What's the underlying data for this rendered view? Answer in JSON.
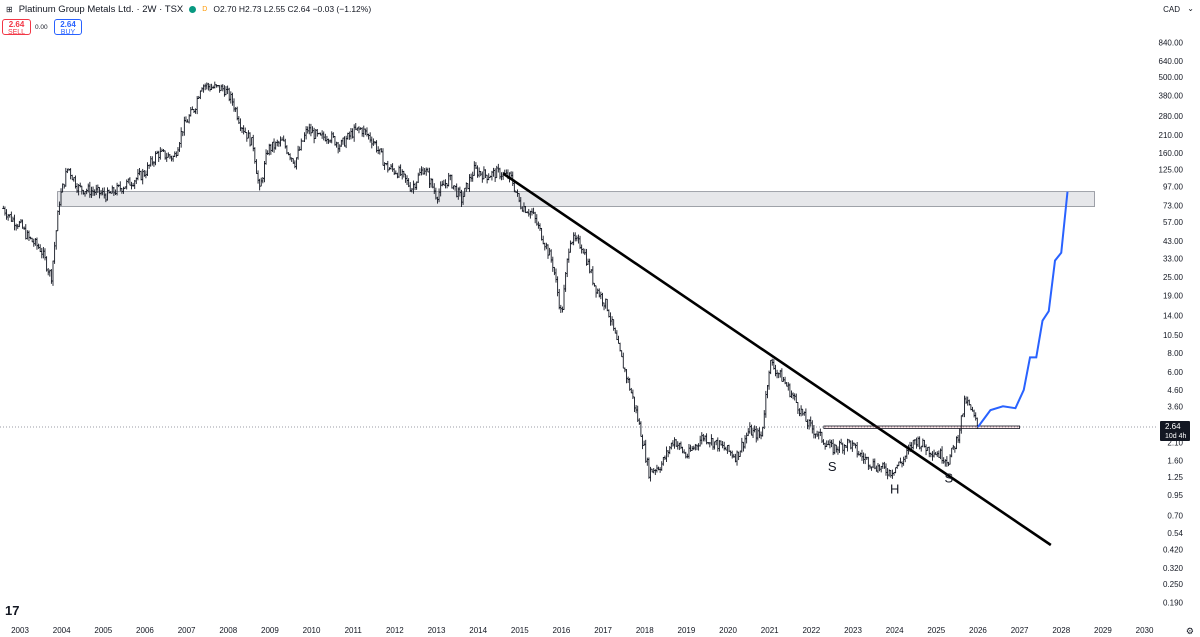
{
  "header": {
    "symbol": "Platinum Group Metals Ltd. · 2W · TSX",
    "status_badge": "D",
    "ohlc": "O2.70 H2.73 L2.55 C2.64 −0.03 (−1.12%)"
  },
  "trade": {
    "sell_price": "2.64",
    "sell_label": "SELL",
    "spread": "0.00",
    "buy_price": "2.64",
    "buy_label": "BUY"
  },
  "currency": "CAD",
  "price_tag": {
    "price": "2.64",
    "countdown": "10d 4h"
  },
  "pattern_labels": [
    "S",
    "H",
    "S"
  ],
  "colors": {
    "up": "#131722",
    "accent": "#2962ff",
    "sell": "#f23645",
    "market_open": "#089981",
    "status": "#ff9800"
  },
  "chart_data": {
    "type": "line",
    "title": "Platinum Group Metals Ltd. · 2W · TSX",
    "y_scale": "log",
    "currency": "CAD",
    "yticks": [
      "840.00",
      "640.00",
      "500.00",
      "380.00",
      "280.00",
      "210.00",
      "160.00",
      "125.00",
      "97.00",
      "73.00",
      "57.00",
      "43.00",
      "33.00",
      "25.00",
      "19.00",
      "14.00",
      "10.50",
      "8.00",
      "6.00",
      "4.60",
      "3.60",
      "2.64",
      "2.10",
      "1.60",
      "1.25",
      "0.95",
      "0.70",
      "0.54",
      "0.420",
      "0.320",
      "0.250",
      "0.190"
    ],
    "xticks": [
      "2003",
      "2004",
      "2005",
      "2006",
      "2007",
      "2008",
      "2009",
      "2010",
      "2011",
      "2012",
      "2013",
      "2014",
      "2015",
      "2016",
      "2017",
      "2018",
      "2019",
      "2020",
      "2021",
      "2022",
      "2023",
      "2024",
      "2025",
      "2026",
      "2027",
      "2028",
      "2029",
      "2030"
    ],
    "series": [
      {
        "values": [
          [
            2002.6,
            70
          ],
          [
            2002.8,
            60
          ],
          [
            2003.0,
            55
          ],
          [
            2003.2,
            45
          ],
          [
            2003.5,
            38
          ],
          [
            2003.75,
            25
          ],
          [
            2003.85,
            45
          ],
          [
            2003.95,
            80
          ],
          [
            2004.15,
            130
          ],
          [
            2004.4,
            95
          ],
          [
            2004.8,
            90
          ],
          [
            2005.1,
            85
          ],
          [
            2005.4,
            95
          ],
          [
            2005.8,
            110
          ],
          [
            2006.0,
            120
          ],
          [
            2006.3,
            160
          ],
          [
            2006.7,
            150
          ],
          [
            2006.9,
            230
          ],
          [
            2007.2,
            320
          ],
          [
            2007.35,
            450
          ],
          [
            2007.6,
            430
          ],
          [
            2007.9,
            420
          ],
          [
            2008.1,
            350
          ],
          [
            2008.3,
            250
          ],
          [
            2008.6,
            180
          ],
          [
            2008.75,
            90
          ],
          [
            2008.95,
            170
          ],
          [
            2009.3,
            190
          ],
          [
            2009.6,
            140
          ],
          [
            2009.9,
            230
          ],
          [
            2010.2,
            200
          ],
          [
            2010.4,
            210
          ],
          [
            2010.7,
            180
          ],
          [
            2011.0,
            220
          ],
          [
            2011.2,
            230
          ],
          [
            2011.5,
            190
          ],
          [
            2011.8,
            130
          ],
          [
            2012.1,
            120
          ],
          [
            2012.4,
            95
          ],
          [
            2012.7,
            130
          ],
          [
            2013.0,
            85
          ],
          [
            2013.3,
            110
          ],
          [
            2013.6,
            80
          ],
          [
            2013.9,
            125
          ],
          [
            2014.2,
            115
          ],
          [
            2014.5,
            120
          ],
          [
            2014.8,
            110
          ],
          [
            2015.0,
            75
          ],
          [
            2015.3,
            65
          ],
          [
            2015.6,
            42
          ],
          [
            2015.8,
            30
          ],
          [
            2016.0,
            14
          ],
          [
            2016.2,
            45
          ],
          [
            2016.5,
            40
          ],
          [
            2016.8,
            22
          ],
          [
            2017.1,
            16
          ],
          [
            2017.4,
            8
          ],
          [
            2017.7,
            4.2
          ],
          [
            2017.9,
            2.5
          ],
          [
            2018.1,
            1.35
          ],
          [
            2018.4,
            1.5
          ],
          [
            2018.7,
            2.2
          ],
          [
            2019.0,
            1.7
          ],
          [
            2019.4,
            2.3
          ],
          [
            2019.8,
            2.0
          ],
          [
            2020.2,
            1.7
          ],
          [
            2020.5,
            2.5
          ],
          [
            2020.8,
            2.3
          ],
          [
            2021.0,
            7.0
          ],
          [
            2021.3,
            5.5
          ],
          [
            2021.6,
            4.0
          ],
          [
            2021.9,
            2.8
          ],
          [
            2022.2,
            2.3
          ],
          [
            2022.5,
            1.9
          ],
          [
            2022.9,
            2.1
          ],
          [
            2023.2,
            1.7
          ],
          [
            2023.6,
            1.45
          ],
          [
            2023.9,
            1.35
          ],
          [
            2024.2,
            1.6
          ],
          [
            2024.5,
            2.2
          ],
          [
            2024.8,
            1.9
          ],
          [
            2025.1,
            1.75
          ],
          [
            2025.3,
            1.6
          ],
          [
            2025.5,
            2.2
          ],
          [
            2025.7,
            4.0
          ],
          [
            2025.85,
            3.3
          ],
          [
            2026.0,
            2.64
          ]
        ]
      }
    ],
    "projection": {
      "values": [
        [
          2026.0,
          2.64
        ],
        [
          2026.3,
          3.4
        ],
        [
          2026.6,
          3.6
        ],
        [
          2026.9,
          3.5
        ],
        [
          2027.1,
          4.6
        ],
        [
          2027.25,
          7.5
        ],
        [
          2027.4,
          7.5
        ],
        [
          2027.55,
          13
        ],
        [
          2027.7,
          15
        ],
        [
          2027.85,
          32
        ],
        [
          2028.0,
          36
        ],
        [
          2028.15,
          90
        ]
      ]
    },
    "resistance_zone": {
      "x": [
        2003.9,
        2028.8
      ],
      "y": [
        72,
        90
      ]
    },
    "trendline": {
      "values": [
        [
          2014.6,
          118
        ],
        [
          2027.75,
          0.45
        ]
      ]
    },
    "neckline": {
      "x": [
        2022.3,
        2027.0
      ],
      "y": [
        2.6,
        2.68
      ]
    },
    "current_price": 2.64
  }
}
